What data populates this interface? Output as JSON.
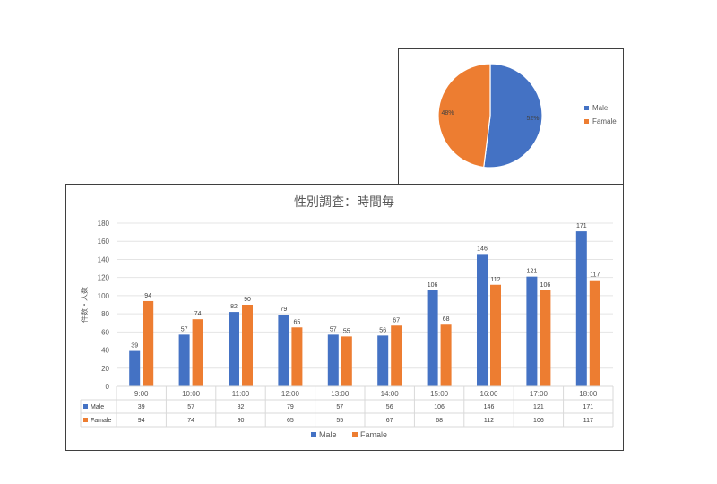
{
  "chart_data": [
    {
      "type": "pie",
      "categories": [
        "Male",
        "Famale"
      ],
      "values": [
        52,
        48
      ],
      "labels": [
        "52%",
        "48%"
      ],
      "colors": [
        "#4472c4",
        "#ed7d31"
      ],
      "legend_position": "right"
    },
    {
      "type": "bar",
      "title": "性別調査：時間毎",
      "ylabel": "件数・人数",
      "categories": [
        "9:00",
        "10:00",
        "11:00",
        "12:00",
        "13:00",
        "14:00",
        "15:00",
        "16:00",
        "17:00",
        "18:00"
      ],
      "series": [
        {
          "name": "Male",
          "values": [
            39,
            57,
            82,
            79,
            57,
            56,
            106,
            146,
            121,
            171
          ],
          "color": "#4472c4"
        },
        {
          "name": "Famale",
          "values": [
            94,
            74,
            90,
            65,
            55,
            67,
            68,
            112,
            106,
            117
          ],
          "color": "#ed7d31"
        }
      ],
      "ylim": [
        0,
        180
      ],
      "yticks": [
        0,
        20,
        40,
        60,
        80,
        100,
        120,
        140,
        160,
        180
      ],
      "grid": true,
      "data_table": true,
      "legend_position": "bottom"
    }
  ]
}
